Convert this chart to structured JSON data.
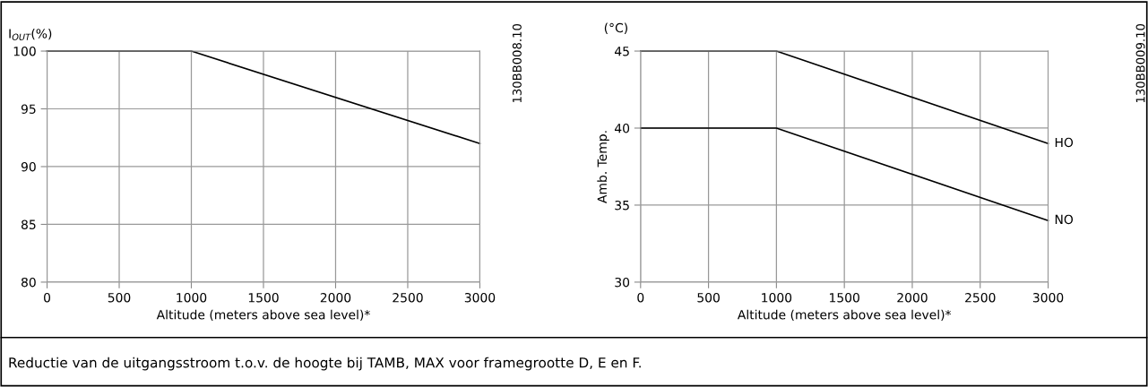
{
  "chart_data": [
    {
      "type": "line",
      "ylabel": "I$_{OUT}$(%)",
      "xlabel": "Altitude (meters above sea level)*",
      "x": [
        0,
        1000,
        3000
      ],
      "series": [
        {
          "color": "#000000",
          "values": [
            100,
            100,
            92
          ]
        }
      ],
      "xlim": [
        0,
        3000
      ],
      "xticks": [
        0,
        500,
        1000,
        1500,
        2000,
        2500,
        3000
      ],
      "ylim": [
        80,
        100
      ],
      "yticks": [
        80,
        85,
        90,
        95,
        100
      ],
      "grid": true,
      "legend": false,
      "annotations": [
        "130BB008.10",
        "Reductie van de uitgangsstroom t.o.v. de hoogte bij TAMB, MAX voor framegrootte D, E en F."
      ]
    },
    {
      "type": "line",
      "ylabel": "Amb. Temp.",
      "xlabel": "Altitude (meters above sea level)*",
      "x": [
        0,
        1000,
        3000
      ],
      "series": [
        {
          "name": "HO",
          "color": "#000000",
          "values": [
            45,
            45,
            39
          ]
        },
        {
          "name": "NO",
          "color": "#000000",
          "values": [
            40,
            40,
            34
          ]
        }
      ],
      "xlim": [
        0,
        3000
      ],
      "xticks": [
        0,
        500,
        1000,
        1500,
        2000,
        2500,
        3000
      ],
      "ylim": [
        30,
        45
      ],
      "yticks": [
        30,
        35,
        40,
        45
      ],
      "grid": true,
      "legend": false,
      "annotations": [
        "(°C)",
        "130BB009.10"
      ]
    }
  ]
}
